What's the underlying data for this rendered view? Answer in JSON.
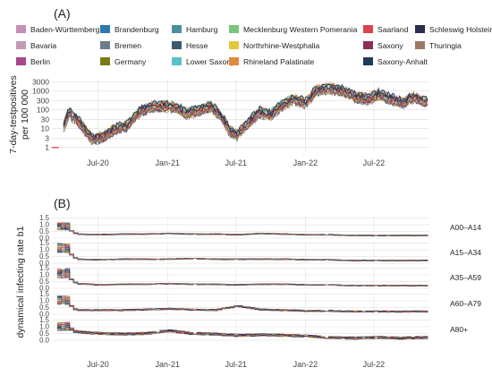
{
  "panel_a_label": "(A)",
  "panel_b_label": "(B)",
  "legend": [
    {
      "name": "Baden-Württemberg",
      "color": "#c78eb8"
    },
    {
      "name": "Bavaria",
      "color": "#c49ab9"
    },
    {
      "name": "Berlin",
      "color": "#a8488a"
    },
    {
      "name": "Brandenburg",
      "color": "#2f78ad"
    },
    {
      "name": "Bremen",
      "color": "#6b7c8a"
    },
    {
      "name": "Germany",
      "color": "#7a7a14"
    },
    {
      "name": "Hamburg",
      "color": "#4a8fa0"
    },
    {
      "name": "Hesse",
      "color": "#3d5a6e"
    },
    {
      "name": "Lower Saxony",
      "color": "#5bbfc7"
    },
    {
      "name": "Mecklenburg Western Pomerania",
      "color": "#7dc47d"
    },
    {
      "name": "Northrhine-Westphalia",
      "color": "#e3c83a"
    },
    {
      "name": "Rhineland Palatinate",
      "color": "#e08a3c"
    },
    {
      "name": "Saarland",
      "color": "#d9454d"
    },
    {
      "name": "Saxony",
      "color": "#8c2f5c"
    },
    {
      "name": "Saxony-Anhalt",
      "color": "#1f3a5a"
    },
    {
      "name": "Schleswig Holstein",
      "color": "#2c2c4e"
    },
    {
      "name": "Thuringia",
      "color": "#9c7a66"
    }
  ],
  "chart_data": [
    {
      "type": "line",
      "panel": "(A)",
      "ylabel": "7-day-testpositives\nper 100 000",
      "y_scale": "log",
      "yticks": [
        "1",
        "3",
        "10",
        "30",
        "100",
        "300",
        "1000",
        "3000"
      ],
      "xticks": [
        "Jul-20",
        "Jan-21",
        "Jul-21",
        "Jan-22",
        "Jul-22"
      ],
      "xlim": [
        "2020-03-01",
        "2022-11-25"
      ],
      "ylim": [
        1,
        3000
      ],
      "grid": true,
      "legend_position": "top",
      "x": [
        "2020-03-10",
        "2020-04-15",
        "2020-05-15",
        "2020-06-15",
        "2020-07-15",
        "2020-08-15",
        "2020-09-15",
        "2020-10-15",
        "2020-11-15",
        "2020-12-20",
        "2021-01-20",
        "2021-02-20",
        "2021-03-25",
        "2021-04-25",
        "2021-05-20",
        "2021-06-15",
        "2021-07-05",
        "2021-08-01",
        "2021-09-01",
        "2021-10-01",
        "2021-11-01",
        "2021-12-01",
        "2022-01-01",
        "2022-02-01",
        "2022-03-10",
        "2022-04-15",
        "2022-05-15",
        "2022-06-15",
        "2022-07-15",
        "2022-08-15",
        "2022-09-15",
        "2022-10-15",
        "2022-11-20"
      ],
      "series": [
        {
          "name": "Germany",
          "values": [
            1,
            80,
            20,
            3,
            4,
            10,
            15,
            70,
            150,
            170,
            150,
            70,
            100,
            160,
            60,
            8,
            5,
            20,
            80,
            60,
            200,
            400,
            250,
            1200,
            1500,
            1000,
            500,
            400,
            700,
            400,
            250,
            500,
            250
          ]
        }
      ]
    },
    {
      "type": "line",
      "panel": "(B)",
      "ylabel": "dynamical infecting rate b1",
      "facets": [
        "A00–A14",
        "A15–A34",
        "A35–A59",
        "A60–A79",
        "A80+"
      ],
      "yticks": [
        "0.0",
        "0.5",
        "1.0",
        "1.5"
      ],
      "ylim": [
        0,
        1.6
      ],
      "xticks": [
        "Jul-20",
        "Jan-21",
        "Jul-21",
        "Jan-22",
        "Jul-22"
      ],
      "xlim": [
        "2020-03-01",
        "2022-11-25"
      ],
      "grid": true,
      "x": [
        "2020-03-15",
        "2020-05-01",
        "2020-07-01",
        "2020-09-01",
        "2020-11-01",
        "2021-01-01",
        "2021-03-01",
        "2021-05-01",
        "2021-07-01",
        "2021-09-01",
        "2021-11-01",
        "2022-01-01",
        "2022-03-01",
        "2022-05-01",
        "2022-07-01",
        "2022-09-01",
        "2022-11-20"
      ],
      "series": [
        {
          "name": "A00–A14",
          "values": [
            1.1,
            0.3,
            0.25,
            0.3,
            0.3,
            0.35,
            0.3,
            0.3,
            0.25,
            0.35,
            0.3,
            0.25,
            0.25,
            0.2,
            0.2,
            0.2,
            0.2
          ]
        },
        {
          "name": "A15–A34",
          "values": [
            1.4,
            0.3,
            0.25,
            0.3,
            0.3,
            0.3,
            0.35,
            0.3,
            0.3,
            0.3,
            0.3,
            0.25,
            0.25,
            0.2,
            0.2,
            0.2,
            0.2
          ]
        },
        {
          "name": "A35–A59",
          "values": [
            1.4,
            0.35,
            0.25,
            0.3,
            0.3,
            0.35,
            0.3,
            0.3,
            0.25,
            0.3,
            0.3,
            0.25,
            0.25,
            0.2,
            0.2,
            0.2,
            0.2
          ]
        },
        {
          "name": "A60–A79",
          "values": [
            1.3,
            0.3,
            0.3,
            0.3,
            0.35,
            0.4,
            0.35,
            0.3,
            0.6,
            0.35,
            0.3,
            0.25,
            0.25,
            0.2,
            0.2,
            0.2,
            0.2
          ]
        },
        {
          "name": "A80+",
          "values": [
            1.3,
            0.6,
            0.5,
            0.45,
            0.5,
            0.7,
            0.5,
            0.45,
            0.35,
            0.4,
            0.35,
            0.3,
            0.2,
            0.15,
            0.2,
            0.15,
            0.2
          ]
        }
      ]
    }
  ]
}
